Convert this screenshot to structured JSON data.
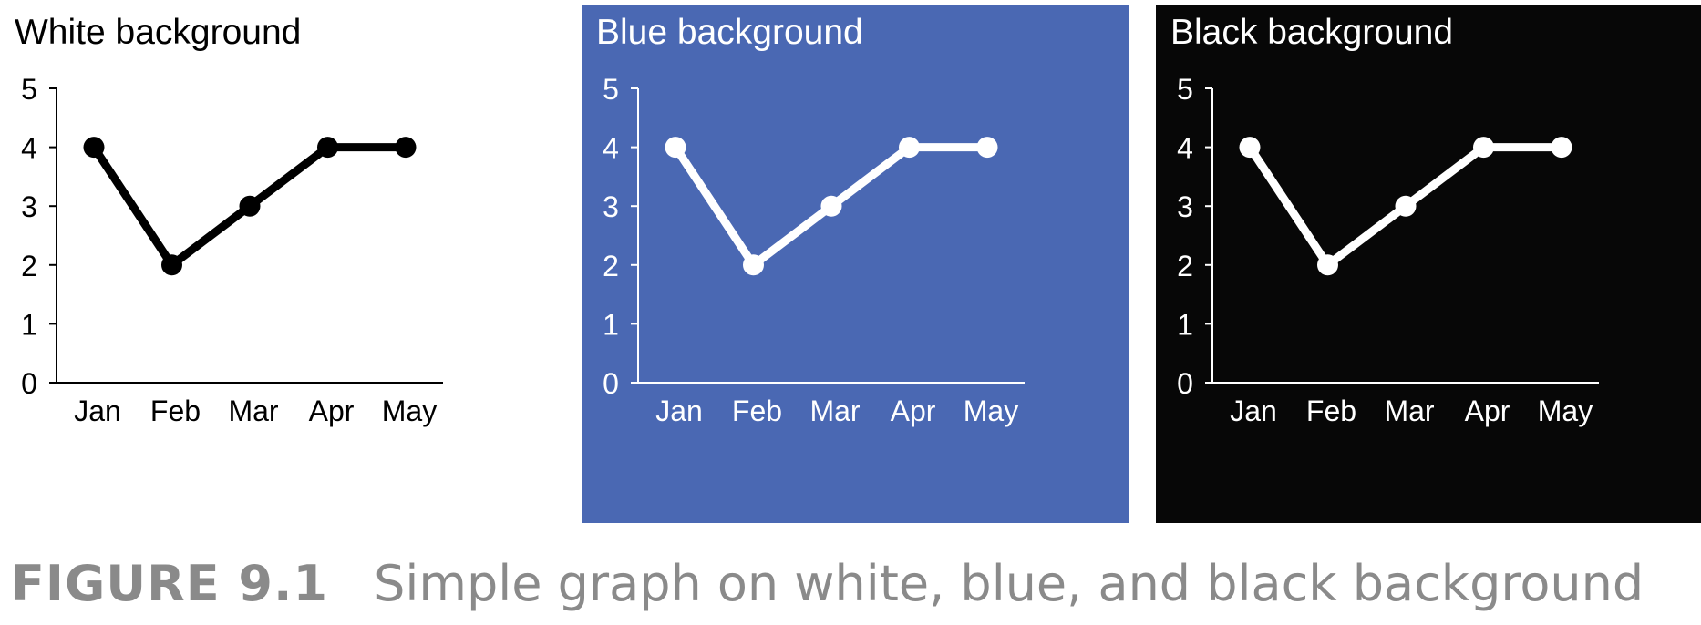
{
  "chart_data": [
    {
      "type": "line",
      "title": "White background",
      "categories": [
        "Jan",
        "Feb",
        "Mar",
        "Apr",
        "May"
      ],
      "values": [
        4,
        2,
        3,
        4,
        4
      ],
      "y_ticks": [
        0,
        1,
        2,
        3,
        4,
        5
      ],
      "ylim": [
        0,
        5
      ],
      "grid": false,
      "background": "#ffffff",
      "foreground": "#000000",
      "point_fill": "#000000"
    },
    {
      "type": "line",
      "title": "Blue background",
      "categories": [
        "Jan",
        "Feb",
        "Mar",
        "Apr",
        "May"
      ],
      "values": [
        4,
        2,
        3,
        4,
        4
      ],
      "y_ticks": [
        0,
        1,
        2,
        3,
        4,
        5
      ],
      "ylim": [
        0,
        5
      ],
      "grid": false,
      "background": "#4a68b3",
      "foreground": "#ffffff",
      "point_fill": "#ffffff"
    },
    {
      "type": "line",
      "title": "Black background",
      "categories": [
        "Jan",
        "Feb",
        "Mar",
        "Apr",
        "May"
      ],
      "values": [
        4,
        2,
        3,
        4,
        4
      ],
      "y_ticks": [
        0,
        1,
        2,
        3,
        4,
        5
      ],
      "ylim": [
        0,
        5
      ],
      "grid": false,
      "background": "#070707",
      "foreground": "#ffffff",
      "point_fill": "#ffffff"
    }
  ],
  "caption": {
    "figure_label": "FIGURE 9.1",
    "text": "Simple graph on white, blue, and black background"
  }
}
